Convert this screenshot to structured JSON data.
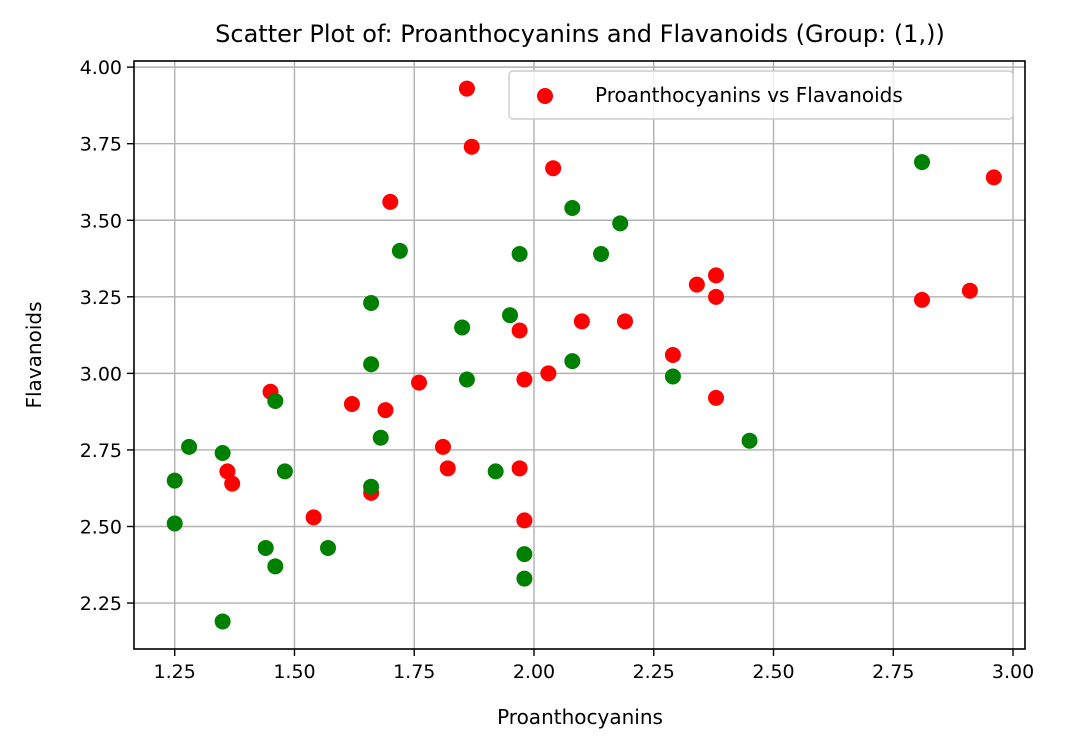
{
  "chart_data": {
    "type": "scatter",
    "title": "Scatter Plot of: Proanthocyanins and Flavanoids (Group: (1,))",
    "xlabel": "Proanthocyanins",
    "ylabel": "Flavanoids",
    "xlim": [
      1.165,
      3.025
    ],
    "ylim": [
      2.1,
      4.02
    ],
    "xticks": [
      1.25,
      1.5,
      1.75,
      2.0,
      2.25,
      2.5,
      2.75,
      3.0
    ],
    "xtick_labels": [
      "1.25",
      "1.50",
      "1.75",
      "2.00",
      "2.25",
      "2.50",
      "2.75",
      "3.00"
    ],
    "yticks": [
      2.25,
      2.5,
      2.75,
      3.0,
      3.25,
      3.5,
      3.75,
      4.0
    ],
    "ytick_labels": [
      "2.25",
      "2.50",
      "2.75",
      "3.00",
      "3.25",
      "3.50",
      "3.75",
      "4.00"
    ],
    "grid": true,
    "legend_position": "top-right",
    "legend": [
      {
        "label": "Proanthocyanins vs Flavanoids",
        "color": "#ff0000"
      }
    ],
    "series": [
      {
        "name": "Proanthocyanins vs Flavanoids",
        "color": "#ff0000",
        "points": [
          [
            1.86,
            3.93
          ],
          [
            1.87,
            3.74
          ],
          [
            2.04,
            3.67
          ],
          [
            2.96,
            3.64
          ],
          [
            1.7,
            3.56
          ],
          [
            2.38,
            3.32
          ],
          [
            2.34,
            3.29
          ],
          [
            2.91,
            3.27
          ],
          [
            2.38,
            3.25
          ],
          [
            2.81,
            3.24
          ],
          [
            2.1,
            3.17
          ],
          [
            2.19,
            3.17
          ],
          [
            1.97,
            3.14
          ],
          [
            2.29,
            3.06
          ],
          [
            2.03,
            3.0
          ],
          [
            1.98,
            2.98
          ],
          [
            1.76,
            2.97
          ],
          [
            1.45,
            2.94
          ],
          [
            2.38,
            2.92
          ],
          [
            1.62,
            2.9
          ],
          [
            1.69,
            2.88
          ],
          [
            1.81,
            2.76
          ],
          [
            1.82,
            2.69
          ],
          [
            1.97,
            2.69
          ],
          [
            1.36,
            2.68
          ],
          [
            1.37,
            2.64
          ],
          [
            1.66,
            2.61
          ],
          [
            1.54,
            2.53
          ],
          [
            1.98,
            2.52
          ]
        ]
      },
      {
        "color": "#008000",
        "points": [
          [
            2.81,
            3.69
          ],
          [
            2.08,
            3.54
          ],
          [
            2.18,
            3.49
          ],
          [
            1.72,
            3.4
          ],
          [
            1.97,
            3.39
          ],
          [
            2.14,
            3.39
          ],
          [
            1.66,
            3.23
          ],
          [
            1.95,
            3.19
          ],
          [
            1.85,
            3.15
          ],
          [
            2.08,
            3.04
          ],
          [
            1.66,
            3.03
          ],
          [
            2.29,
            2.99
          ],
          [
            1.86,
            2.98
          ],
          [
            1.46,
            2.91
          ],
          [
            1.68,
            2.79
          ],
          [
            2.45,
            2.78
          ],
          [
            1.28,
            2.76
          ],
          [
            1.35,
            2.74
          ],
          [
            1.48,
            2.68
          ],
          [
            1.92,
            2.68
          ],
          [
            1.25,
            2.65
          ],
          [
            1.66,
            2.63
          ],
          [
            1.25,
            2.51
          ],
          [
            1.44,
            2.43
          ],
          [
            1.57,
            2.43
          ],
          [
            1.98,
            2.41
          ],
          [
            1.46,
            2.37
          ],
          [
            1.98,
            2.33
          ],
          [
            1.35,
            2.19
          ]
        ]
      }
    ]
  }
}
